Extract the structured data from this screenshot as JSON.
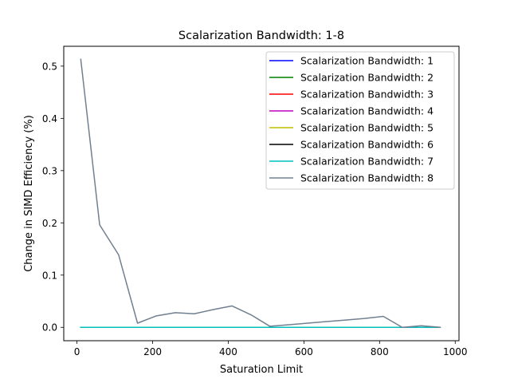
{
  "chart_data": {
    "type": "line",
    "title": "Scalarization Bandwidth: 1-8",
    "xlabel": "Saturation Limit",
    "ylabel": "Change in SIMD Efficiency (%)",
    "xlim": [
      -35,
      1010
    ],
    "ylim": [
      -0.0256,
      0.538
    ],
    "xticks": [
      0,
      200,
      400,
      600,
      800,
      1000
    ],
    "yticks": [
      0.0,
      0.1,
      0.2,
      0.3,
      0.4,
      0.5
    ],
    "xtick_labels": [
      "0",
      "200",
      "400",
      "600",
      "800",
      "1000"
    ],
    "ytick_labels": [
      "0.0",
      "0.1",
      "0.2",
      "0.3",
      "0.4",
      "0.5"
    ],
    "legend_position": "top-right",
    "x": [
      10,
      60,
      110,
      160,
      210,
      260,
      310,
      360,
      410,
      460,
      510,
      560,
      610,
      660,
      710,
      760,
      810,
      860,
      910,
      960
    ],
    "series": [
      {
        "name": "Scalarization Bandwidth: 1",
        "color": "#0000ff",
        "values": [
          0,
          0,
          0,
          0,
          0,
          0,
          0,
          0,
          0,
          0,
          0,
          0,
          0,
          0,
          0,
          0,
          0,
          0,
          0,
          0
        ]
      },
      {
        "name": "Scalarization Bandwidth: 2",
        "color": "#008000",
        "values": [
          0,
          0,
          0,
          0,
          0,
          0,
          0,
          0,
          0,
          0,
          0,
          0,
          0,
          0,
          0,
          0,
          0,
          0,
          0,
          0
        ]
      },
      {
        "name": "Scalarization Bandwidth: 3",
        "color": "#ff0000",
        "values": [
          0,
          0,
          0,
          0,
          0,
          0,
          0,
          0,
          0,
          0,
          0,
          0,
          0,
          0,
          0,
          0,
          0,
          0,
          0,
          0
        ]
      },
      {
        "name": "Scalarization Bandwidth: 4",
        "color": "#bf00bf",
        "values": [
          0,
          0,
          0,
          0,
          0,
          0,
          0,
          0,
          0,
          0,
          0,
          0,
          0,
          0,
          0,
          0,
          0,
          0,
          0,
          0
        ]
      },
      {
        "name": "Scalarization Bandwidth: 5",
        "color": "#bfbf00",
        "values": [
          0,
          0,
          0,
          0,
          0,
          0,
          0,
          0,
          0,
          0,
          0,
          0,
          0,
          0,
          0,
          0,
          0,
          0,
          0,
          0
        ]
      },
      {
        "name": "Scalarization Bandwidth: 6",
        "color": "#000000",
        "values": [
          0,
          0,
          0,
          0,
          0,
          0,
          0,
          0,
          0,
          0,
          0,
          0,
          0,
          0,
          0,
          0,
          0,
          0,
          0,
          0
        ]
      },
      {
        "name": "Scalarization Bandwidth: 7",
        "color": "#00bfbf",
        "values": [
          0,
          0,
          0,
          0,
          0,
          0,
          0,
          0,
          0,
          0,
          0,
          0,
          0,
          0,
          0,
          0,
          0,
          0,
          0,
          0
        ]
      },
      {
        "name": "Scalarization Bandwidth: 8",
        "color": "#708090",
        "values": [
          0.513,
          0.196,
          0.139,
          0.008,
          0.022,
          0.028,
          0.026,
          0.034,
          0.041,
          0.024,
          0.002,
          0.005,
          0.008,
          0.011,
          0.014,
          0.017,
          0.021,
          0.0,
          0.003,
          0.0
        ]
      }
    ]
  }
}
